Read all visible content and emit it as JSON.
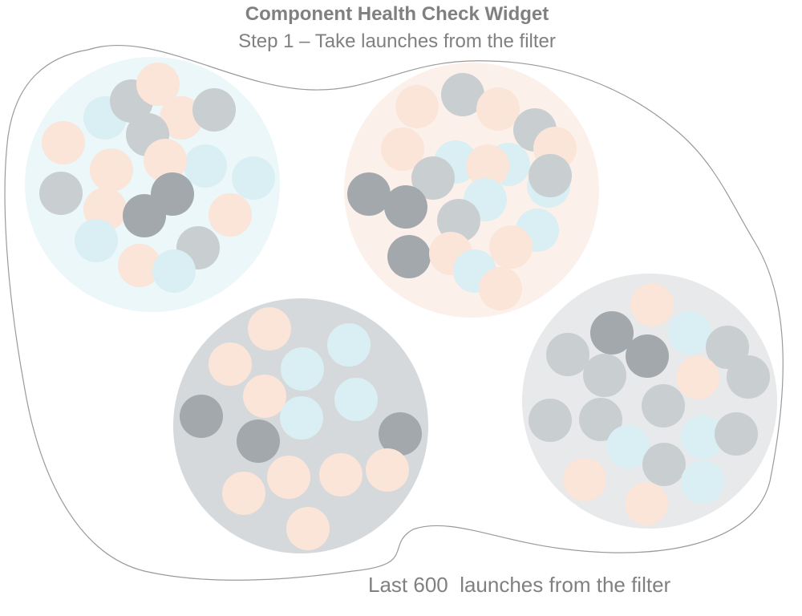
{
  "header": {
    "title": "Component Health Check Widget",
    "subtitle": "Step 1 – Take launches from the filter"
  },
  "footer": {
    "caption": "Last 600  launches from the filter"
  },
  "colors": {
    "outline": "#9a9a9a",
    "text": "#808080",
    "launch_blue": "#d9eff4",
    "launch_peach": "#fbe4d8",
    "launch_gray": "#c9ced1",
    "launch_dark": "#a3a8ad"
  },
  "groups": [
    {
      "name": "blue-group",
      "background": "#ebf7f9"
    },
    {
      "name": "peach-group",
      "background": "#fcf0eb"
    },
    {
      "name": "dark-group",
      "background": "#d6d9dc"
    },
    {
      "name": "gray-group",
      "background": "#e7e9ea"
    }
  ]
}
